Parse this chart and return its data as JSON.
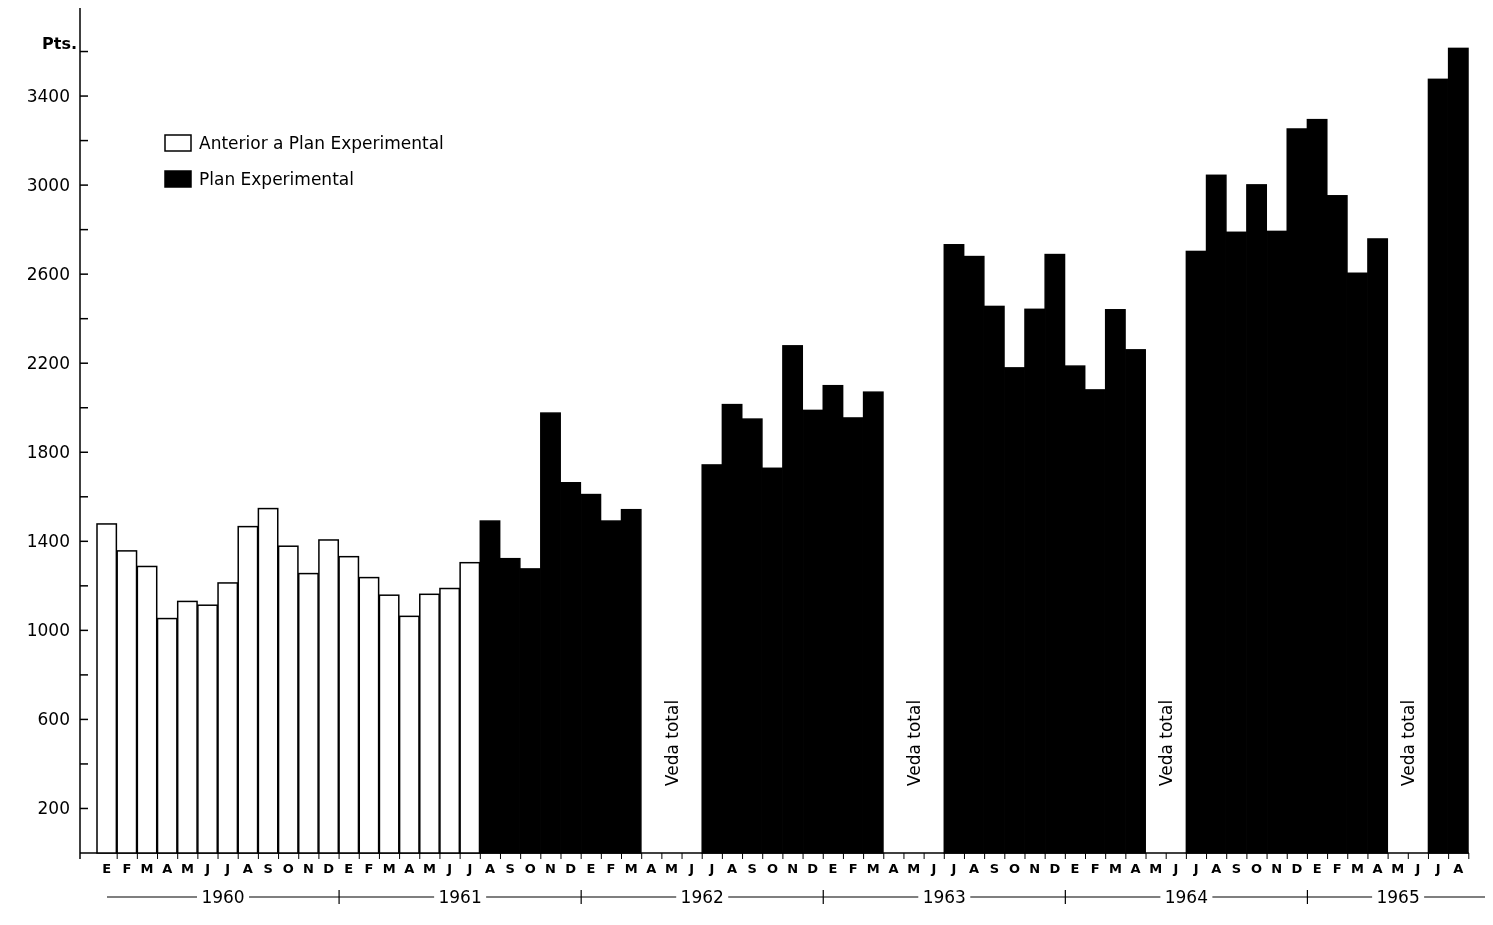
{
  "chart_data": {
    "type": "bar",
    "ylabel": "Pts.",
    "categories": [
      "E",
      "F",
      "M",
      "A",
      "M",
      "J",
      "J",
      "A",
      "S",
      "O",
      "N",
      "D",
      "E",
      "F",
      "M",
      "A",
      "M",
      "J",
      "J",
      "A",
      "S",
      "O",
      "N",
      "D",
      "E",
      "F",
      "M",
      "A",
      "M",
      "J",
      "J",
      "A",
      "S",
      "O",
      "N",
      "D",
      "E",
      "F",
      "M",
      "A",
      "M",
      "J",
      "J",
      "A",
      "S",
      "O",
      "N",
      "D",
      "E",
      "F",
      "M",
      "A",
      "M",
      "J",
      "J",
      "A",
      "S",
      "O",
      "N",
      "D",
      "E",
      "F",
      "M",
      "A",
      "M",
      "J",
      "J",
      "A"
    ],
    "series": [
      {
        "name": "Anterior a Plan Experimental",
        "color": "#ffffff",
        "values": [
          1478,
          1357,
          1287,
          1053,
          1130,
          1113,
          1213,
          1466,
          1547,
          1378,
          1255,
          1406,
          1331,
          1237,
          1158,
          1063,
          1162,
          1188,
          1304,
          null,
          null,
          null,
          null,
          null,
          null,
          null,
          null,
          null,
          null,
          null,
          null,
          null,
          null,
          null,
          null,
          null,
          null,
          null,
          null,
          null,
          null,
          null,
          null,
          null,
          null,
          null,
          null,
          null,
          null,
          null,
          null,
          null,
          null,
          null,
          null,
          null,
          null,
          null,
          null,
          null,
          null,
          null,
          null,
          null,
          null,
          null,
          null,
          null
        ]
      },
      {
        "name": "Plan Experimental",
        "color": "#000000",
        "values": [
          null,
          null,
          null,
          null,
          null,
          null,
          null,
          null,
          null,
          null,
          null,
          null,
          null,
          null,
          null,
          null,
          null,
          null,
          null,
          1491,
          1322,
          1276,
          1976,
          1663,
          1610,
          1491,
          1542,
          null,
          null,
          null,
          1743,
          2014,
          1949,
          1728,
          2278,
          1988,
          2099,
          1954,
          2070,
          null,
          null,
          null,
          2732,
          2679,
          2455,
          2179,
          2442,
          2688,
          2187,
          2080,
          2440,
          2260,
          null,
          null,
          2702,
          3044,
          2788,
          3001,
          2792,
          3252,
          3294,
          2952,
          2604,
          2758,
          null,
          null,
          3475,
          3614
        ]
      }
    ],
    "ylim": [
      0,
      3800
    ],
    "yticks": [
      200,
      {
        "value": 400,
        "label": null
      },
      600,
      {
        "value": 800,
        "label": null
      },
      1000,
      {
        "value": 1200,
        "label": null
      },
      1400,
      {
        "value": 1600,
        "label": null
      },
      1800,
      {
        "value": 2000,
        "label": null
      },
      2200,
      {
        "value": 2400,
        "label": null
      },
      2600,
      {
        "value": 2800,
        "label": null
      },
      3000,
      {
        "value": 3200,
        "label": null
      },
      3400,
      {
        "value": 3600,
        "label": null
      }
    ],
    "legend": "top left",
    "annotations": [
      "1960",
      "1961",
      "1962",
      "1963",
      "1964",
      "1965",
      "Veda total",
      "Veda total",
      "Veda total",
      "Veda total"
    ]
  }
}
